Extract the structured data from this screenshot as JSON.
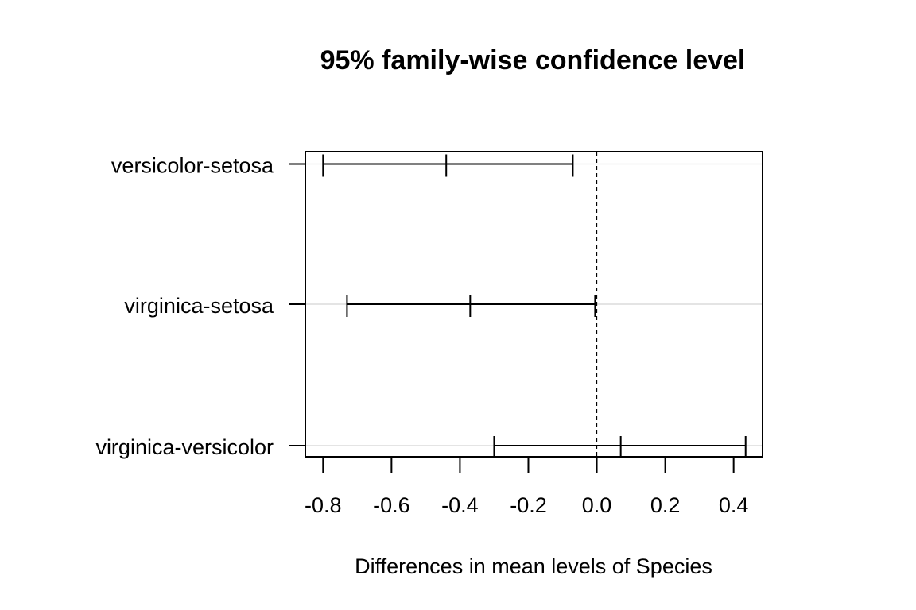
{
  "chart_data": {
    "type": "errorbar",
    "title": "95% family-wise confidence level",
    "subtitle": "",
    "xlabel": "Differences in mean levels of Species",
    "ylabel": "",
    "xlim": [
      -0.85,
      0.48
    ],
    "x_ticks": [
      -0.8,
      -0.6,
      -0.4,
      -0.2,
      0.0,
      0.2,
      0.4
    ],
    "x_tick_labels": [
      "-0.8",
      "-0.6",
      "-0.4",
      "-0.2",
      "0.0",
      "0.2",
      "0.4"
    ],
    "reference_line": 0.0,
    "grid": true,
    "legend": "none",
    "comparisons": [
      {
        "label": "versicolor-setosa",
        "lwr": -0.8,
        "diff": -0.44,
        "upr": -0.07
      },
      {
        "label": "virginica-setosa",
        "lwr": -0.73,
        "diff": -0.37,
        "upr": -0.005
      },
      {
        "label": "virginica-versicolor",
        "lwr": -0.3,
        "diff": 0.07,
        "upr": 0.435
      }
    ],
    "colors": {
      "ink": "#000000",
      "grid": "#d3d3d3"
    }
  }
}
